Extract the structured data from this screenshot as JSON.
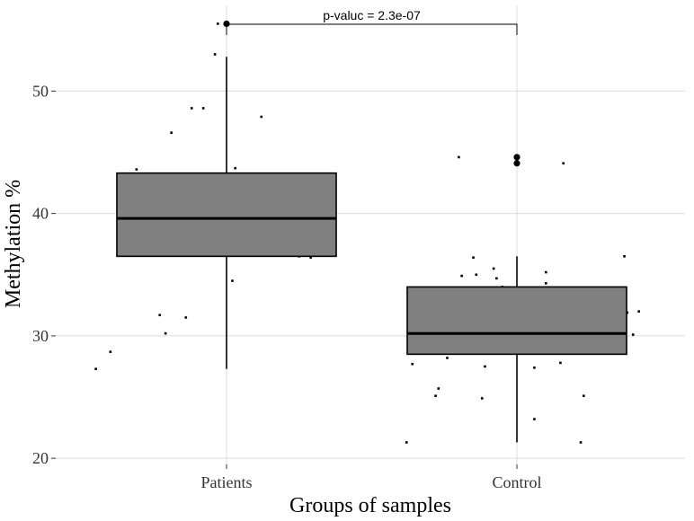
{
  "chart_data": {
    "type": "box",
    "xlabel": "Groups of samples",
    "ylabel": "Methylation %",
    "categories": [
      "Patients",
      "Control"
    ],
    "ylim": [
      19.5,
      57
    ],
    "yticks": [
      20,
      30,
      40,
      50
    ],
    "grid": true,
    "colors": {
      "box_fill": "#808080",
      "box_edge": "#000000",
      "grid": "#dcdcdc",
      "point": "#000000"
    },
    "boxes": [
      {
        "name": "Patients",
        "q1": 36.5,
        "median": 39.6,
        "q3": 43.3,
        "whisker_low": 27.3,
        "whisker_high": 52.8,
        "outliers": [
          55.5
        ]
      },
      {
        "name": "Control",
        "q1": 28.5,
        "median": 30.2,
        "q3": 34.0,
        "whisker_low": 21.3,
        "whisker_high": 36.5,
        "outliers": [
          44.6,
          44.1
        ]
      }
    ],
    "points": [
      {
        "group": "Patients",
        "x": [
          0.55,
          0.6,
          0.71,
          0.79,
          0.83,
          0.86,
          0.7,
          0.77,
          0.69,
          0.81,
          0.97,
          0.96,
          0.92,
          0.8,
          0.85,
          0.98,
          0.99,
          1.02,
          1.03,
          1.05,
          1.12,
          1.15,
          1.25,
          1.24,
          1.2,
          1.26,
          1.29,
          1.25,
          0.83,
          0.88
        ],
        "y": [
          27.3,
          28.7,
          36.8,
          30.2,
          37.9,
          31.5,
          37.7,
          31.7,
          43.6,
          46.6,
          55.5,
          53.0,
          48.6,
          43.0,
          42.9,
          41.4,
          37.7,
          34.5,
          43.7,
          36.6,
          47.9,
          36.6,
          42.8,
          41.6,
          40.1,
          41.7,
          36.4,
          36.5,
          43.0,
          48.6
        ]
      },
      {
        "group": "Control",
        "x": [
          1.62,
          1.64,
          1.63,
          1.65,
          1.66,
          1.68,
          1.69,
          1.72,
          1.73,
          1.74,
          1.76,
          1.78,
          1.8,
          1.81,
          1.85,
          1.86,
          1.88,
          1.89,
          1.89,
          1.91,
          1.92,
          1.93,
          1.95,
          1.96,
          1.97,
          1.98,
          2.06,
          2.06,
          2.1,
          2.1,
          2.15,
          2.14,
          2.19,
          2.22,
          2.23,
          2.25,
          2.26,
          2.27,
          2.3,
          2.31,
          2.34,
          2.37,
          2.38,
          2.4,
          2.42,
          1.77,
          2.02,
          2.16
        ],
        "y": [
          21.3,
          27.7,
          29.4,
          30.3,
          31.3,
          32.0,
          29.8,
          25.1,
          25.7,
          32.4,
          28.2,
          28.9,
          44.6,
          34.9,
          36.4,
          35.0,
          24.9,
          27.5,
          29.5,
          30.5,
          35.5,
          34.7,
          34.0,
          29.7,
          29.5,
          30.0,
          27.4,
          23.2,
          35.2,
          34.3,
          27.8,
          32.2,
          29.3,
          21.3,
          25.1,
          29.9,
          30.5,
          33.2,
          32.0,
          30.8,
          28.7,
          36.5,
          31.9,
          30.1,
          32.0,
          29.2,
          30.4,
          44.1
        ]
      }
    ],
    "annotation": {
      "text": "p-valuc = 2.3e-07",
      "y": 57
    }
  }
}
